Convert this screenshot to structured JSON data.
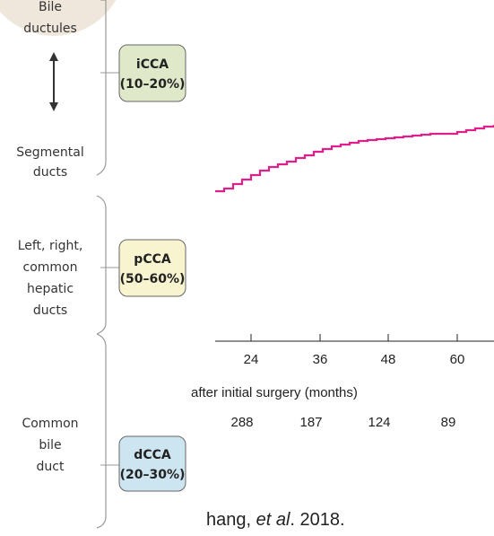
{
  "sections": [
    {
      "labels": [
        [
          "Bile",
          "ductules"
        ],
        [
          "Segmental",
          "ducts"
        ]
      ],
      "box": [
        "iCCA",
        "(10–20%)"
      ]
    },
    {
      "labels": [
        [
          "Left, right,",
          "common",
          "hepatic",
          "ducts"
        ]
      ],
      "box": [
        "pCCA",
        "(50–60%)"
      ]
    },
    {
      "labels": [
        [
          "Common",
          "bile",
          "duct"
        ]
      ],
      "box": [
        "dCCA",
        "(20–30%)"
      ]
    }
  ],
  "chart": {
    "xticks": [
      24,
      36,
      48,
      60
    ],
    "xlabel": "after initial surgery (months)",
    "at_risk": [
      288,
      187,
      124,
      89
    ]
  },
  "caption": [
    "hang, ",
    "et al",
    ". 2018."
  ]
}
